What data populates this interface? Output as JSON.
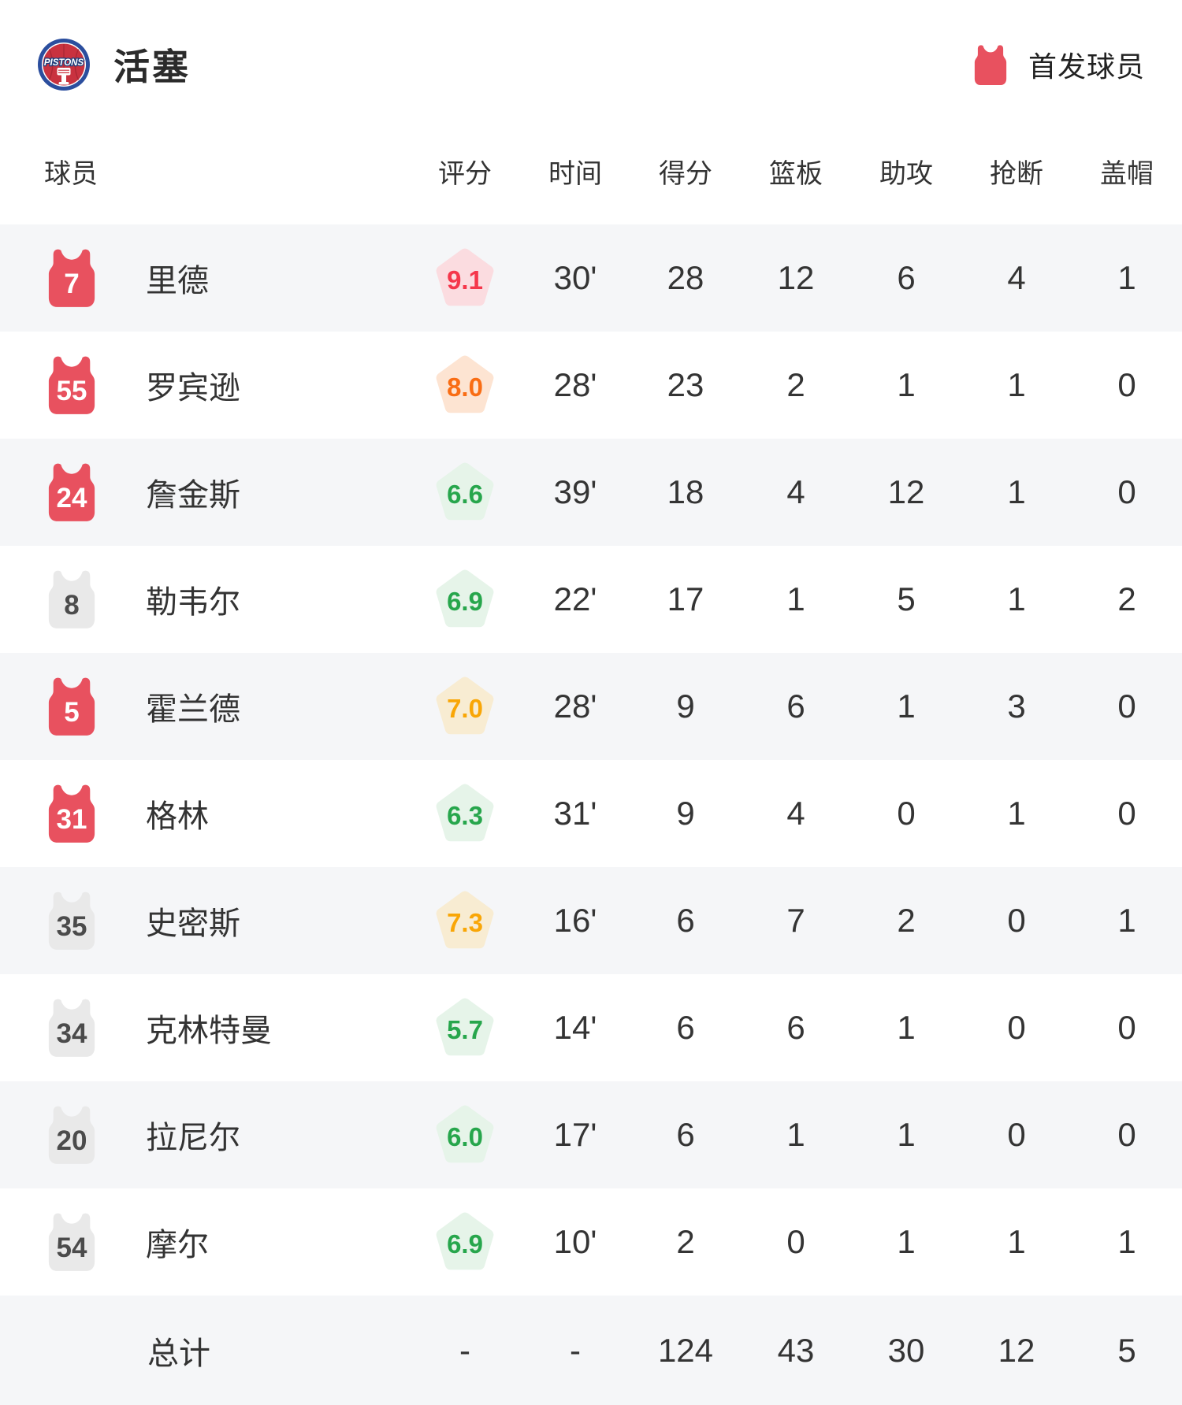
{
  "header": {
    "team_name": "活塞",
    "logo_text": "PISTONS",
    "starter_legend": "首发球员"
  },
  "colors": {
    "starter_jersey": "#e8515f",
    "bench_jersey": "#e9e9e9",
    "row_alt_bg": "#f5f6f8",
    "rating_tiers": {
      "red": {
        "text": "#f5374b",
        "bg": "#fbdce0"
      },
      "orange": {
        "text": "#f96d14",
        "bg": "#fde4d2"
      },
      "amber": {
        "text": "#f9a606",
        "bg": "#f8ecd2"
      },
      "green": {
        "text": "#27a64c",
        "bg": "#e6f4e9"
      }
    }
  },
  "table": {
    "columns": [
      "球员",
      "评分",
      "时间",
      "得分",
      "篮板",
      "助攻",
      "抢断",
      "盖帽"
    ],
    "players": [
      {
        "number": "7",
        "name": "里德",
        "starter": true,
        "rating": "9.1",
        "tier": "red",
        "time": "30'",
        "points": "28",
        "rebounds": "12",
        "assists": "6",
        "steals": "4",
        "blocks": "1"
      },
      {
        "number": "55",
        "name": "罗宾逊",
        "starter": true,
        "rating": "8.0",
        "tier": "orange",
        "time": "28'",
        "points": "23",
        "rebounds": "2",
        "assists": "1",
        "steals": "1",
        "blocks": "0"
      },
      {
        "number": "24",
        "name": "詹金斯",
        "starter": true,
        "rating": "6.6",
        "tier": "green",
        "time": "39'",
        "points": "18",
        "rebounds": "4",
        "assists": "12",
        "steals": "1",
        "blocks": "0"
      },
      {
        "number": "8",
        "name": "勒韦尔",
        "starter": false,
        "rating": "6.9",
        "tier": "green",
        "time": "22'",
        "points": "17",
        "rebounds": "1",
        "assists": "5",
        "steals": "1",
        "blocks": "2"
      },
      {
        "number": "5",
        "name": "霍兰德",
        "starter": true,
        "rating": "7.0",
        "tier": "amber",
        "time": "28'",
        "points": "9",
        "rebounds": "6",
        "assists": "1",
        "steals": "3",
        "blocks": "0"
      },
      {
        "number": "31",
        "name": "格林",
        "starter": true,
        "rating": "6.3",
        "tier": "green",
        "time": "31'",
        "points": "9",
        "rebounds": "4",
        "assists": "0",
        "steals": "1",
        "blocks": "0"
      },
      {
        "number": "35",
        "name": "史密斯",
        "starter": false,
        "rating": "7.3",
        "tier": "amber",
        "time": "16'",
        "points": "6",
        "rebounds": "7",
        "assists": "2",
        "steals": "0",
        "blocks": "1"
      },
      {
        "number": "34",
        "name": "克林特曼",
        "starter": false,
        "rating": "5.7",
        "tier": "green",
        "time": "14'",
        "points": "6",
        "rebounds": "6",
        "assists": "1",
        "steals": "0",
        "blocks": "0"
      },
      {
        "number": "20",
        "name": "拉尼尔",
        "starter": false,
        "rating": "6.0",
        "tier": "green",
        "time": "17'",
        "points": "6",
        "rebounds": "1",
        "assists": "1",
        "steals": "0",
        "blocks": "0"
      },
      {
        "number": "54",
        "name": "摩尔",
        "starter": false,
        "rating": "6.9",
        "tier": "green",
        "time": "10'",
        "points": "2",
        "rebounds": "0",
        "assists": "1",
        "steals": "1",
        "blocks": "1"
      }
    ],
    "totals": {
      "label": "总计",
      "rating": "-",
      "time": "-",
      "points": "124",
      "rebounds": "43",
      "assists": "30",
      "steals": "12",
      "blocks": "5"
    }
  }
}
